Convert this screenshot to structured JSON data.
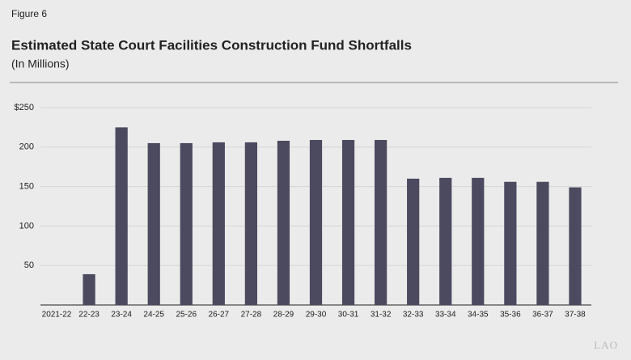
{
  "figure_label": "Figure 6",
  "logo": "LAO",
  "chart_data": {
    "type": "bar",
    "title": "Estimated State Court Facilities Construction Fund Shortfalls",
    "subtitle": "(In Millions)",
    "categories": [
      "2021-22",
      "22-23",
      "23-24",
      "24-25",
      "25-26",
      "26-27",
      "27-28",
      "28-29",
      "29-30",
      "30-31",
      "31-32",
      "32-33",
      "33-34",
      "34-35",
      "35-36",
      "36-37",
      "37-38"
    ],
    "values": [
      0,
      39,
      225,
      205,
      205,
      206,
      206,
      208,
      209,
      209,
      209,
      160,
      161,
      161,
      156,
      156,
      149
    ],
    "color": "#4b4a5f",
    "ylim": [
      0,
      250
    ],
    "yticks": [
      {
        "value": 250,
        "label": "$250"
      },
      200,
      150,
      100,
      50
    ],
    "grid": true
  }
}
